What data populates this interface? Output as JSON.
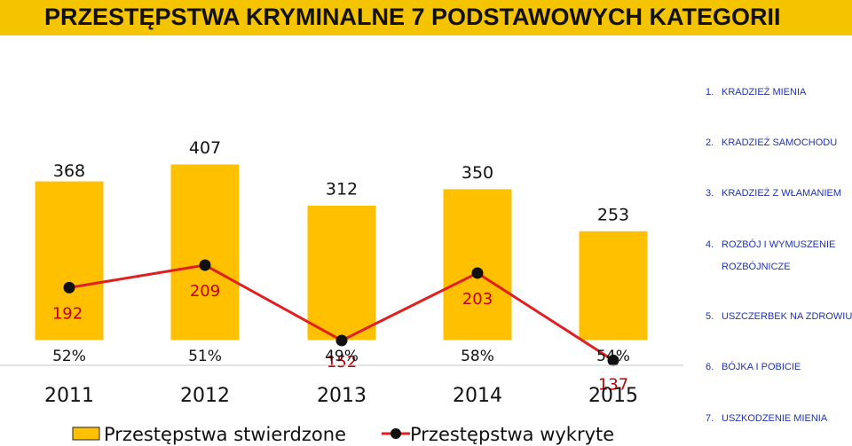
{
  "title": "PRZESTĘPSTWA KRYMINALNE 7 PODSTAWOWYCH KATEGORII",
  "categories_list": [
    {
      "num": "1.",
      "label": "KRADZIEŻ MIENIA"
    },
    {
      "num": "2.",
      "label": "KRADZIEŻ SAMOCHODU"
    },
    {
      "num": "3.",
      "label": "KRADZIEŻ Z WŁAMANIEM"
    },
    {
      "num": "4.",
      "label": "ROZBÓJ I WYMUSZENIE",
      "sub": "ROZBÓJNICZE"
    },
    {
      "num": "5.",
      "label": "USZCZERBEK NA ZDROWIU"
    },
    {
      "num": "6.",
      "label": "BÓJKA I POBICIE"
    },
    {
      "num": "7.",
      "label": "USZKODZENIE MIENIA"
    }
  ],
  "colors": {
    "title_bg": "#f5c400",
    "bar_fill": "#ffc000",
    "line": "#e02020",
    "marker": "#111111",
    "line_label": "#c00000",
    "list_text": "#2233aa"
  },
  "chart_data": {
    "type": "bar",
    "categories": [
      "2011",
      "2012",
      "2013",
      "2014",
      "2015"
    ],
    "series": [
      {
        "name": "Przestępstwa stwierdzone",
        "type": "bar",
        "values": [
          368,
          407,
          312,
          350,
          253
        ]
      },
      {
        "name": "Przestępstwa wykryte",
        "type": "line",
        "values": [
          192,
          209,
          152,
          203,
          137
        ]
      }
    ],
    "percent_labels": [
      "52%",
      "51%",
      "49%",
      "58%",
      "54%"
    ],
    "ylim": [
      0,
      420
    ],
    "grid": false,
    "legend": "bottom"
  }
}
